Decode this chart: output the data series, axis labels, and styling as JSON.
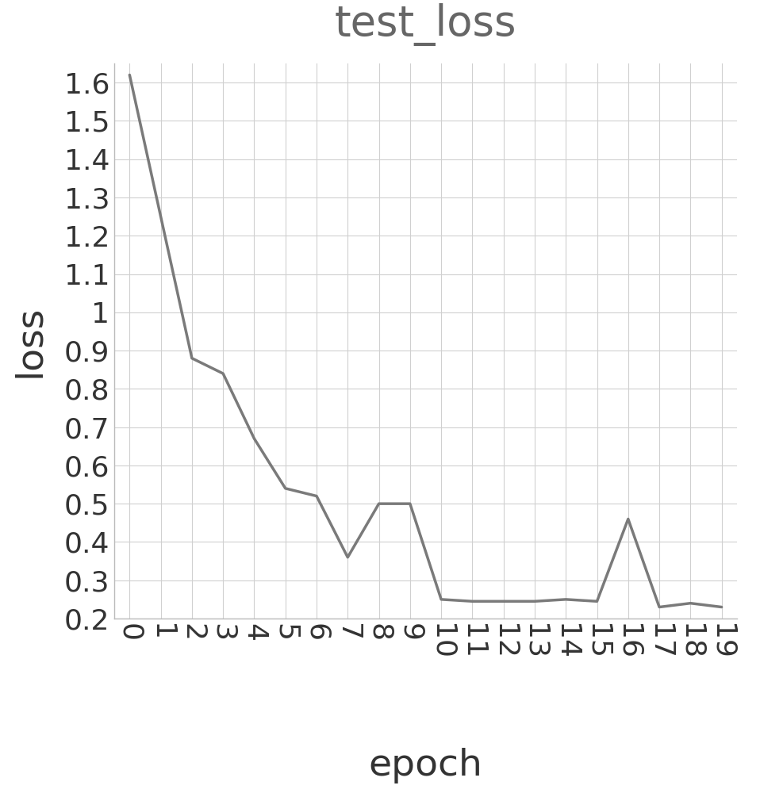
{
  "title": "test_loss",
  "xlabel": "epoch",
  "ylabel": "loss",
  "x": [
    0,
    1,
    2,
    3,
    4,
    5,
    6,
    7,
    8,
    9,
    10,
    11,
    12,
    13,
    14,
    15,
    16,
    17,
    18,
    19
  ],
  "y": [
    1.62,
    1.25,
    0.88,
    0.84,
    0.67,
    0.54,
    0.52,
    0.36,
    0.5,
    0.5,
    0.25,
    0.245,
    0.245,
    0.245,
    0.25,
    0.245,
    0.46,
    0.23,
    0.24,
    0.23
  ],
  "ylim": [
    0.2,
    1.65
  ],
  "yticks": [
    0.2,
    0.3,
    0.4,
    0.5,
    0.6,
    0.7,
    0.8,
    0.9,
    1.0,
    1.1,
    1.2,
    1.3,
    1.4,
    1.5,
    1.6
  ],
  "line_color": "#7a7a7a",
  "line_width": 2.5,
  "background_color": "#ffffff",
  "grid_color": "#d0d0d0",
  "title_fontsize": 38,
  "label_fontsize": 34,
  "tick_fontsize": 26,
  "title_color": "#666666",
  "label_color": "#333333",
  "tick_color": "#333333"
}
